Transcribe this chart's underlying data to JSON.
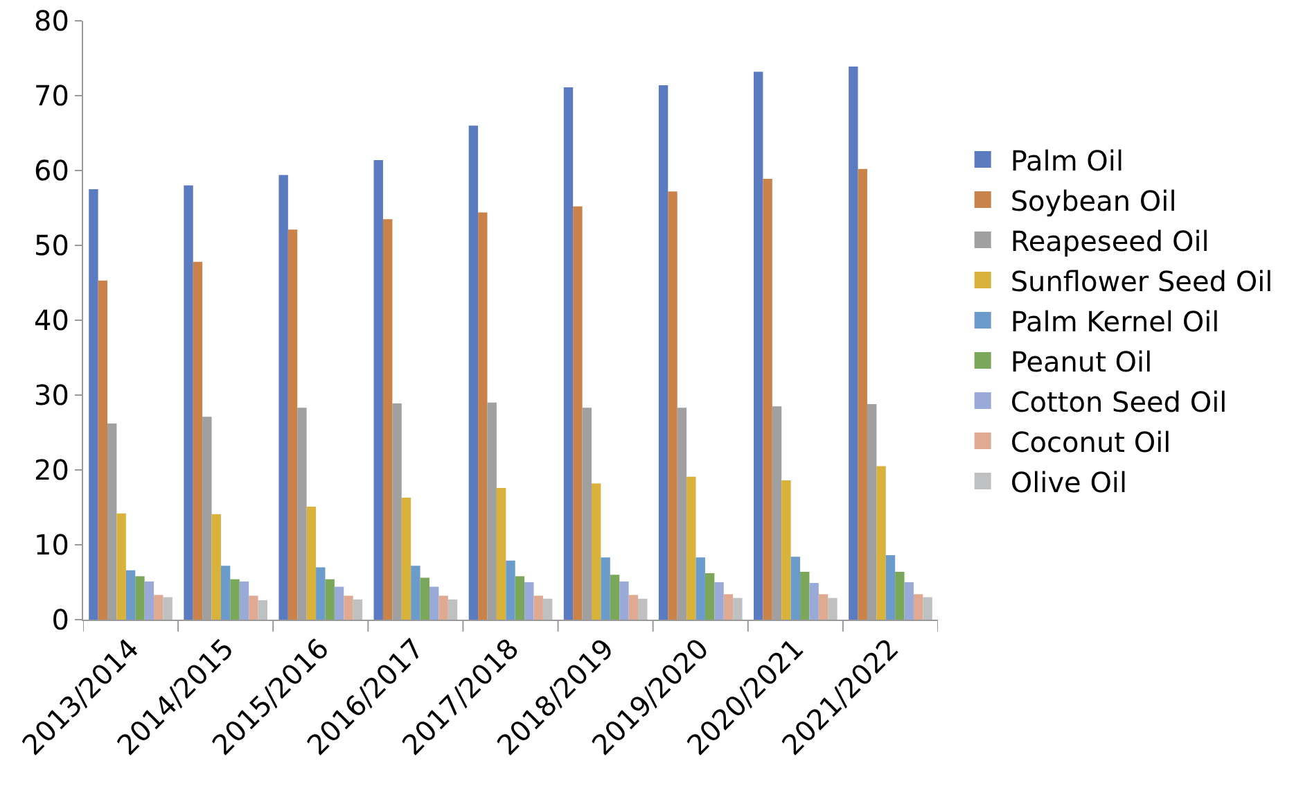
{
  "chart_data": {
    "type": "bar",
    "categories": [
      "2013/2014",
      "2014/2015",
      "2015/2016",
      "2016/2017",
      "2017/2018",
      "2018/2019",
      "2019/2020",
      "2020/2021",
      "2021/2022"
    ],
    "ylim": [
      0,
      80
    ],
    "yticks": [
      0,
      10,
      20,
      30,
      40,
      50,
      60,
      70,
      80
    ],
    "grid": false,
    "legend": "right",
    "series": [
      {
        "name": "Palm Oil",
        "color": "#5b7bc0",
        "values": [
          57.5,
          58,
          59.4,
          61.4,
          66,
          71.1,
          71.4,
          73.2,
          73.9
        ]
      },
      {
        "name": "Soybean Oil",
        "color": "#c8824a",
        "values": [
          45.3,
          47.8,
          52.1,
          53.5,
          54.4,
          55.2,
          57.2,
          58.9,
          60.2
        ]
      },
      {
        "name": "Reapeseed Oil",
        "color": "#a0a0a0",
        "values": [
          26.2,
          27.1,
          28.3,
          28.9,
          29,
          28.3,
          28.3,
          28.5,
          28.8
        ]
      },
      {
        "name": "Sunflower Seed Oil",
        "color": "#d8b23a",
        "values": [
          14.2,
          14.1,
          15.1,
          16.3,
          17.6,
          18.2,
          19.1,
          18.6,
          20.5
        ]
      },
      {
        "name": "Palm Kernel Oil",
        "color": "#6b9bcb",
        "values": [
          6.6,
          7.2,
          7,
          7.2,
          7.9,
          8.3,
          8.3,
          8.4,
          8.6
        ]
      },
      {
        "name": "Peanut Oil",
        "color": "#7aa75a",
        "values": [
          5.8,
          5.4,
          5.4,
          5.6,
          5.8,
          6,
          6.2,
          6.4,
          6.4
        ]
      },
      {
        "name": "Cotton Seed Oil",
        "color": "#9aaad8",
        "values": [
          5.1,
          5.1,
          4.4,
          4.4,
          5,
          5.1,
          5,
          4.9,
          5
        ]
      },
      {
        "name": "Coconut Oil",
        "color": "#e0aa92",
        "values": [
          3.3,
          3.2,
          3.2,
          3.2,
          3.2,
          3.3,
          3.4,
          3.4,
          3.4
        ]
      },
      {
        "name": "Olive Oil",
        "color": "#bfc0c2",
        "values": [
          3,
          2.6,
          2.7,
          2.7,
          2.8,
          2.8,
          2.9,
          2.9,
          3
        ]
      }
    ]
  }
}
